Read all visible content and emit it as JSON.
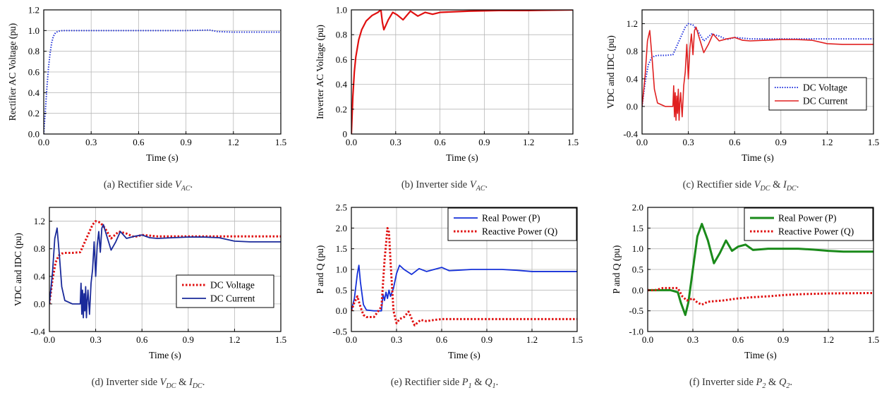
{
  "chart_data": [
    {
      "id": "a",
      "type": "line",
      "caption": {
        "prefix": "(a) Rectifier side ",
        "symbol": "VAC",
        "suffix": "."
      },
      "xlabel": "Time (s)",
      "ylabel": "Rectifier AC Voltage (pu)",
      "xlim": [
        0,
        1.5
      ],
      "ylim": [
        0,
        1.2
      ],
      "xticks": [
        "0.0",
        "0.3",
        "0.6",
        "0.9",
        "1.2",
        "1.5"
      ],
      "yticks": [
        "0.0",
        "0.2",
        "0.4",
        "0.6",
        "0.8",
        "1.0",
        "1.2"
      ],
      "grid": true,
      "legend": null,
      "series": [
        {
          "color": "#1f2fd6",
          "style": "dotted",
          "width": 2,
          "x": [
            0,
            0.01,
            0.02,
            0.03,
            0.04,
            0.05,
            0.06,
            0.07,
            0.08,
            0.1,
            0.12,
            0.15,
            0.3,
            0.6,
            0.9,
            1.05,
            1.1,
            1.2,
            1.3,
            1.4,
            1.5
          ],
          "y": [
            0,
            0.22,
            0.45,
            0.64,
            0.78,
            0.88,
            0.94,
            0.97,
            0.985,
            0.995,
            1.0,
            1.0,
            1.0,
            1.0,
            1.0,
            1.005,
            0.99,
            0.985,
            0.985,
            0.985,
            0.985
          ]
        }
      ]
    },
    {
      "id": "b",
      "type": "line",
      "caption": {
        "prefix": "(b) Inverter side ",
        "symbol": "VAC",
        "suffix": "."
      },
      "xlabel": "Time (s)",
      "ylabel": "Inverter AC Voltage (pu)",
      "xlim": [
        0,
        1.5
      ],
      "ylim": [
        0,
        1.0
      ],
      "xticks": [
        "0.0",
        "0.3",
        "0.6",
        "0.9",
        "1.2",
        "1.5"
      ],
      "yticks": [
        "0",
        "0.2",
        "0.4",
        "0.6",
        "0.8",
        "1.0"
      ],
      "grid": true,
      "legend": null,
      "series": [
        {
          "color": "#e01010",
          "style": "solid",
          "width": 2.2,
          "x": [
            0,
            0.01,
            0.02,
            0.03,
            0.05,
            0.07,
            0.1,
            0.14,
            0.18,
            0.2,
            0.21,
            0.22,
            0.25,
            0.28,
            0.31,
            0.35,
            0.4,
            0.45,
            0.5,
            0.55,
            0.6,
            0.7,
            0.8,
            1.0,
            1.2,
            1.5
          ],
          "y": [
            0,
            0.3,
            0.5,
            0.62,
            0.76,
            0.84,
            0.91,
            0.955,
            0.98,
            1.0,
            0.9,
            0.84,
            0.92,
            0.98,
            0.96,
            0.92,
            0.99,
            0.95,
            0.98,
            0.965,
            0.98,
            0.985,
            0.99,
            0.995,
            0.995,
            1.0
          ]
        }
      ]
    },
    {
      "id": "c",
      "type": "line",
      "caption": {
        "prefix": "(c) Rectifier side ",
        "symbol": "VDC",
        "mid": " & ",
        "symbol2": "IDC",
        "suffix": "."
      },
      "xlabel": "Time (s)",
      "ylabel": "VDC and IDC (pu)",
      "xlim": [
        0,
        1.5
      ],
      "ylim": [
        -0.4,
        1.4
      ],
      "xticks": [
        "0.0",
        "0.3",
        "0.6",
        "0.9",
        "1.2",
        "1.5"
      ],
      "yticks": [
        "-0.4",
        "0.0",
        "0.4",
        "0.8",
        "1.2"
      ],
      "ytick_values": [
        -0.4,
        0.0,
        0.4,
        0.8,
        1.2
      ],
      "grid": true,
      "legend": {
        "position": "center-right",
        "entries": [
          "DC Voltage",
          "DC Current"
        ]
      },
      "series": [
        {
          "name": "DC Voltage",
          "color": "#2233dd",
          "style": "dotted",
          "width": 2,
          "x": [
            0,
            0.02,
            0.04,
            0.06,
            0.08,
            0.1,
            0.15,
            0.2,
            0.25,
            0.28,
            0.3,
            0.33,
            0.36,
            0.4,
            0.45,
            0.5,
            0.55,
            0.6,
            0.7,
            0.9,
            1.2,
            1.5
          ],
          "y": [
            0,
            0.35,
            0.6,
            0.7,
            0.73,
            0.74,
            0.74,
            0.75,
            1.0,
            1.15,
            1.2,
            1.18,
            1.1,
            0.95,
            1.05,
            1.02,
            0.97,
            1.0,
            0.98,
            0.98,
            0.98,
            0.98
          ]
        },
        {
          "name": "DC Current",
          "color": "#e02020",
          "style": "solid",
          "width": 1.6,
          "x": [
            0,
            0.02,
            0.035,
            0.05,
            0.065,
            0.08,
            0.1,
            0.15,
            0.2,
            0.205,
            0.21,
            0.215,
            0.22,
            0.225,
            0.23,
            0.235,
            0.24,
            0.245,
            0.25,
            0.26,
            0.27,
            0.28,
            0.29,
            0.3,
            0.31,
            0.32,
            0.33,
            0.34,
            0.35,
            0.37,
            0.4,
            0.43,
            0.46,
            0.5,
            0.55,
            0.6,
            0.65,
            0.7,
            0.8,
            0.9,
            1.0,
            1.1,
            1.2,
            1.3,
            1.5
          ],
          "y": [
            0,
            0.45,
            0.95,
            1.1,
            0.7,
            0.25,
            0.05,
            0.0,
            0.0,
            0.3,
            -0.15,
            0.2,
            -0.2,
            0.15,
            -0.1,
            0.25,
            -0.2,
            0.05,
            0.2,
            -0.15,
            0.3,
            0.5,
            0.9,
            0.4,
            0.85,
            1.05,
            0.75,
            1.1,
            1.15,
            1.0,
            0.78,
            0.9,
            1.05,
            0.95,
            0.98,
            1.0,
            0.96,
            0.95,
            0.96,
            0.97,
            0.97,
            0.96,
            0.91,
            0.9,
            0.9
          ]
        }
      ]
    },
    {
      "id": "d",
      "type": "line",
      "caption": {
        "prefix": "(d) Inverter side ",
        "symbol": "VDC",
        "mid": " & ",
        "symbol2": "IDC",
        "suffix": "."
      },
      "xlabel": "Time (s)",
      "ylabel": "VDC and IDC (pu)",
      "xlim": [
        0,
        1.5
      ],
      "ylim": [
        -0.4,
        1.4
      ],
      "xticks": [
        "0.0",
        "0.3",
        "0.6",
        "0.9",
        "1.2",
        "1.5"
      ],
      "yticks": [
        "-0.4",
        "0.0",
        "0.4",
        "0.8",
        "1.2"
      ],
      "ytick_values": [
        -0.4,
        0.0,
        0.4,
        0.8,
        1.2
      ],
      "grid": true,
      "legend": {
        "position": "center-right",
        "entries": [
          "DC Voltage",
          "DC Current"
        ]
      },
      "series": [
        {
          "name": "DC Voltage",
          "color": "#e01010",
          "style": "dotted",
          "width": 3,
          "x": [
            0,
            0.02,
            0.04,
            0.06,
            0.08,
            0.1,
            0.15,
            0.2,
            0.25,
            0.28,
            0.3,
            0.33,
            0.36,
            0.4,
            0.45,
            0.5,
            0.55,
            0.6,
            0.7,
            0.9,
            1.2,
            1.5
          ],
          "y": [
            0,
            0.35,
            0.6,
            0.7,
            0.73,
            0.74,
            0.74,
            0.75,
            1.0,
            1.15,
            1.2,
            1.18,
            1.1,
            0.95,
            1.05,
            1.02,
            0.97,
            1.0,
            0.98,
            0.98,
            0.98,
            0.98
          ]
        },
        {
          "name": "DC Current",
          "color": "#1a2a9a",
          "style": "solid",
          "width": 1.8,
          "x": [
            0,
            0.02,
            0.035,
            0.05,
            0.065,
            0.08,
            0.1,
            0.15,
            0.2,
            0.205,
            0.21,
            0.215,
            0.22,
            0.225,
            0.23,
            0.235,
            0.24,
            0.245,
            0.25,
            0.26,
            0.27,
            0.28,
            0.29,
            0.3,
            0.31,
            0.32,
            0.33,
            0.34,
            0.35,
            0.37,
            0.4,
            0.43,
            0.46,
            0.5,
            0.55,
            0.6,
            0.65,
            0.7,
            0.8,
            0.9,
            1.0,
            1.1,
            1.2,
            1.3,
            1.5
          ],
          "y": [
            0,
            0.45,
            0.95,
            1.1,
            0.7,
            0.25,
            0.05,
            0.0,
            0.0,
            0.3,
            -0.15,
            0.2,
            -0.2,
            0.15,
            -0.1,
            0.25,
            -0.2,
            0.05,
            0.2,
            -0.15,
            0.3,
            0.5,
            0.9,
            0.4,
            0.85,
            1.05,
            0.75,
            1.1,
            1.15,
            1.0,
            0.78,
            0.9,
            1.05,
            0.95,
            0.98,
            1.0,
            0.96,
            0.95,
            0.96,
            0.97,
            0.97,
            0.96,
            0.91,
            0.9,
            0.9
          ]
        }
      ]
    },
    {
      "id": "e",
      "type": "line",
      "caption": {
        "prefix": "(e) Rectifier side ",
        "symbol": "P1",
        "mid": " & ",
        "symbol2": "Q1",
        "suffix": "."
      },
      "xlabel": "Time (s)",
      "ylabel": "P and Q (pu)",
      "xlim": [
        0,
        1.5
      ],
      "ylim": [
        -0.5,
        2.5
      ],
      "xticks": [
        "0.0",
        "0.3",
        "0.6",
        "0.9",
        "1.2",
        "1.5"
      ],
      "yticks": [
        "-0.5",
        "0.0",
        "0.5",
        "1.0",
        "1.5",
        "2.0",
        "2.5"
      ],
      "ytick_values": [
        -0.5,
        0.0,
        0.5,
        1.0,
        1.5,
        2.0,
        2.5
      ],
      "grid": true,
      "legend": {
        "position": "top-right",
        "entries": [
          "Real Power (P)",
          "Reactive Power (Q)"
        ]
      },
      "series": [
        {
          "name": "Real Power (P)",
          "color": "#1530d8",
          "style": "solid",
          "width": 1.8,
          "x": [
            0,
            0.02,
            0.04,
            0.05,
            0.06,
            0.08,
            0.1,
            0.15,
            0.2,
            0.21,
            0.22,
            0.23,
            0.24,
            0.25,
            0.26,
            0.28,
            0.3,
            0.32,
            0.35,
            0.4,
            0.45,
            0.5,
            0.55,
            0.6,
            0.65,
            0.7,
            0.8,
            0.9,
            1.0,
            1.1,
            1.2,
            1.3,
            1.5
          ],
          "y": [
            0,
            0.3,
            0.9,
            1.1,
            0.7,
            0.15,
            0.02,
            0.0,
            0.0,
            0.4,
            0.25,
            0.45,
            0.3,
            0.5,
            0.35,
            0.55,
            0.9,
            1.1,
            1.0,
            0.88,
            1.02,
            0.95,
            1.0,
            1.05,
            0.97,
            0.98,
            1.0,
            1.0,
            1.0,
            0.98,
            0.95,
            0.95,
            0.95
          ]
        },
        {
          "name": "Reactive Power (Q)",
          "color": "#e01010",
          "style": "dotted",
          "width": 3,
          "x": [
            0,
            0.02,
            0.04,
            0.06,
            0.08,
            0.1,
            0.15,
            0.2,
            0.22,
            0.24,
            0.25,
            0.26,
            0.28,
            0.3,
            0.32,
            0.35,
            0.38,
            0.42,
            0.46,
            0.5,
            0.55,
            0.6,
            0.7,
            0.9,
            1.2,
            1.5
          ],
          "y": [
            0,
            0.2,
            0.35,
            0.1,
            -0.1,
            -0.15,
            -0.15,
            0.1,
            1.2,
            2.0,
            1.9,
            1.2,
            0.0,
            -0.3,
            -0.2,
            -0.15,
            -0.02,
            -0.35,
            -0.22,
            -0.25,
            -0.22,
            -0.2,
            -0.2,
            -0.2,
            -0.2,
            -0.2
          ]
        }
      ]
    },
    {
      "id": "f",
      "type": "line",
      "caption": {
        "prefix": "(f) Inverter side ",
        "symbol": "P2",
        "mid": " & ",
        "symbol2": "Q2",
        "suffix": "."
      },
      "xlabel": "Time (s)",
      "ylabel": "P and Q (pu)",
      "xlim": [
        0,
        1.5
      ],
      "ylim": [
        -1.0,
        2.0
      ],
      "xticks": [
        "0.0",
        "0.3",
        "0.6",
        "0.9",
        "1.2",
        "1.5"
      ],
      "yticks": [
        "-1.0",
        "-0.5",
        "0.0",
        "0.5",
        "1.0",
        "1.5",
        "2.0"
      ],
      "ytick_values": [
        -1.0,
        -0.5,
        0.0,
        0.5,
        1.0,
        1.5,
        2.0
      ],
      "grid": true,
      "legend": {
        "position": "top-right",
        "entries": [
          "Real Power (P)",
          "Reactive Power (Q)"
        ]
      },
      "series": [
        {
          "name": "Real Power (P)",
          "color": "#1a8a1a",
          "style": "solid",
          "width": 3,
          "x": [
            0,
            0.05,
            0.1,
            0.15,
            0.2,
            0.22,
            0.25,
            0.27,
            0.3,
            0.33,
            0.36,
            0.4,
            0.44,
            0.48,
            0.52,
            0.56,
            0.6,
            0.65,
            0.7,
            0.8,
            0.9,
            1.0,
            1.1,
            1.2,
            1.3,
            1.4,
            1.5
          ],
          "y": [
            0,
            0.0,
            0.0,
            0.0,
            -0.05,
            -0.3,
            -0.6,
            -0.3,
            0.5,
            1.3,
            1.6,
            1.2,
            0.65,
            0.9,
            1.2,
            0.95,
            1.05,
            1.1,
            0.97,
            1.0,
            1.0,
            1.0,
            0.98,
            0.95,
            0.93,
            0.93,
            0.93
          ]
        },
        {
          "name": "Reactive Power (Q)",
          "color": "#e01010",
          "style": "dotted",
          "width": 3,
          "x": [
            0,
            0.05,
            0.1,
            0.15,
            0.2,
            0.23,
            0.26,
            0.3,
            0.33,
            0.36,
            0.4,
            0.5,
            0.6,
            0.7,
            0.8,
            0.9,
            1.0,
            1.2,
            1.5
          ],
          "y": [
            0,
            0.0,
            0.05,
            0.05,
            0.05,
            -0.15,
            -0.25,
            -0.2,
            -0.3,
            -0.35,
            -0.28,
            -0.25,
            -0.2,
            -0.17,
            -0.15,
            -0.12,
            -0.1,
            -0.08,
            -0.07
          ]
        }
      ]
    }
  ]
}
